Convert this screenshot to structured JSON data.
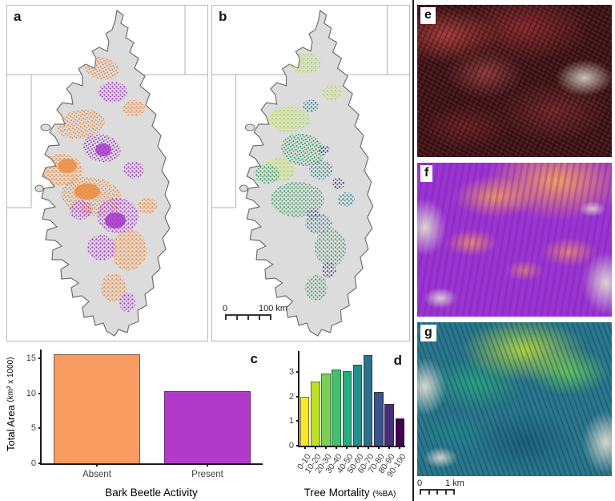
{
  "figure": {
    "panels": {
      "a": {
        "label": "a"
      },
      "b": {
        "label": "b",
        "scalebar": {
          "start": "0",
          "end": "100 km"
        }
      },
      "c": {
        "label": "c"
      },
      "d": {
        "label": "d"
      },
      "e": {
        "label": "e"
      },
      "f": {
        "label": "f"
      },
      "g": {
        "label": "g",
        "scalebar": {
          "start": "0",
          "end": "1 km"
        }
      }
    }
  },
  "chart_data": [
    {
      "type": "bar",
      "panel": "c",
      "categories": [
        "Absent",
        "Present"
      ],
      "values": [
        15.6,
        10.3
      ],
      "colors": [
        "#F79B60",
        "#B23AC9"
      ],
      "xlabel": "Bark Beetle Activity",
      "ylabel": "Total Area (km² x 1000)",
      "ylabel_main": "Total Area ",
      "ylabel_unit": "(km² x 1000)",
      "yticks": [
        0,
        5,
        10,
        15
      ],
      "ylim": [
        0,
        16.3
      ],
      "grid": false,
      "legend": "none"
    },
    {
      "type": "bar",
      "panel": "d",
      "categories": [
        "0-10",
        "10-20",
        "20-30",
        "30-40",
        "40-50",
        "50-60",
        "60-70",
        "70-80",
        "80-90",
        "90-100"
      ],
      "values": [
        2.0,
        2.6,
        2.95,
        3.1,
        3.05,
        3.3,
        3.7,
        2.2,
        1.7,
        1.1
      ],
      "colors": [
        "#FDE725",
        "#BDDF26",
        "#7AD151",
        "#44BF70",
        "#27AD81",
        "#21918C",
        "#2C728E",
        "#3B528B",
        "#472D7B",
        "#440154"
      ],
      "xlabel": "Tree Mortality (%BA)",
      "xlabel_main": "Tree Mortality ",
      "xlabel_unit": "(%BA)",
      "yticks": [
        0,
        1,
        2,
        3
      ],
      "ylim": [
        0,
        3.85
      ],
      "grid": false,
      "legend": "none"
    }
  ]
}
